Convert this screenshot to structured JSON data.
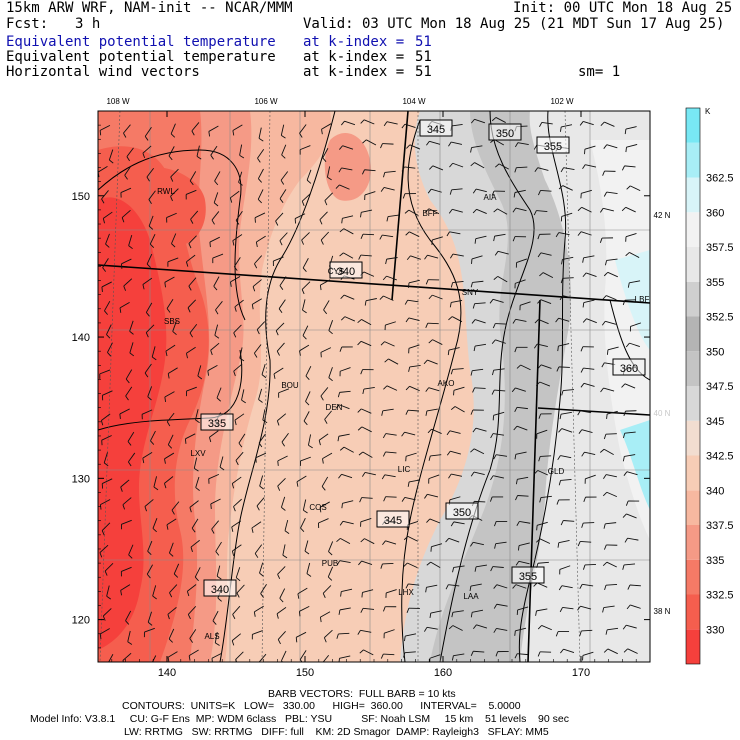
{
  "header": {
    "title": "15km ARW WRF, NAM-init -- NCAR/MMM",
    "init": "Init: 00 UTC Mon 18 Aug 25",
    "fcst_label": "Fcst:",
    "fcst_value": "3 h",
    "valid": "Valid: 03 UTC Mon 18 Aug 25 (21 MDT Sun 17 Aug 25)",
    "fields": [
      {
        "name": "Equivalent potential temperature",
        "level": "at k-index =",
        "index": "51"
      },
      {
        "name": "Equivalent potential temperature",
        "level": "at k-index =",
        "index": "51"
      },
      {
        "name": "Horizontal wind vectors",
        "level": "at k-index =",
        "index": "51"
      }
    ],
    "smoothing": "sm= 1"
  },
  "chart_data": {
    "type": "heatmap",
    "variable": "Equivalent potential temperature",
    "colorbar_unit": "K",
    "colorbar_levels": [
      "330",
      "332.5",
      "335",
      "337.5",
      "340",
      "342.5",
      "345",
      "347.5",
      "350",
      "352.5",
      "355",
      "357.5",
      "360",
      "362.5"
    ],
    "colorbar_colors": [
      "#f5403c",
      "#f55e4e",
      "#f57a66",
      "#f59a86",
      "#f7b8a0",
      "#f7cdb6",
      "#f2ddd0",
      "#d8d8d8",
      "#c4c4c4",
      "#b4b4b4",
      "#cfcfcf",
      "#e8e8e8",
      "#f2f2f2",
      "#d8f4f8",
      "#a8eef6",
      "#78e8f4"
    ],
    "x_ticks": [
      140,
      150,
      160,
      170
    ],
    "y_ticks": [
      120,
      130,
      140,
      150
    ],
    "xlim": [
      135,
      175
    ],
    "ylim": [
      117,
      156
    ],
    "lon_labels": [
      "108 W",
      "106 W",
      "104 W",
      "102 W"
    ],
    "lat_labels": [
      "42 N",
      "40 N",
      "38 N"
    ],
    "contour_labels": [
      "345",
      "350",
      "355",
      "340",
      "360",
      "335",
      "345",
      "350",
      "355",
      "340"
    ],
    "stations": [
      "RWL",
      "BFF",
      "AIA",
      "CYS",
      "SNY",
      "LBF",
      "SBS",
      "BOU",
      "DEN",
      "AKO",
      "LXV",
      "LIC",
      "GLD",
      "COS",
      "PUB",
      "LHX",
      "LAA",
      "ALS"
    ],
    "contours": {
      "units": "K",
      "low": "330.00",
      "high": "360.00",
      "interval": "5.0000"
    }
  },
  "footer": {
    "barb_line": "BARB VECTORS:  FULL BARB = 10 kts",
    "contour_line": "CONTOURS:  UNITS=K   LOW=   330.00      HIGH=  360.00      INTERVAL=    5.0000",
    "model_line": "Model Info: V3.8.1     CU: G-F Ens  MP: WDM 6class   PBL: YSU          SF: Noah LSM     15 km    51 levels    90 sec",
    "physics_line": "LW: RRTMG   SW: RRTMG   DIFF: full    KM: 2D Smagor  DAMP: Rayleigh3   SFLAY: MM5"
  }
}
